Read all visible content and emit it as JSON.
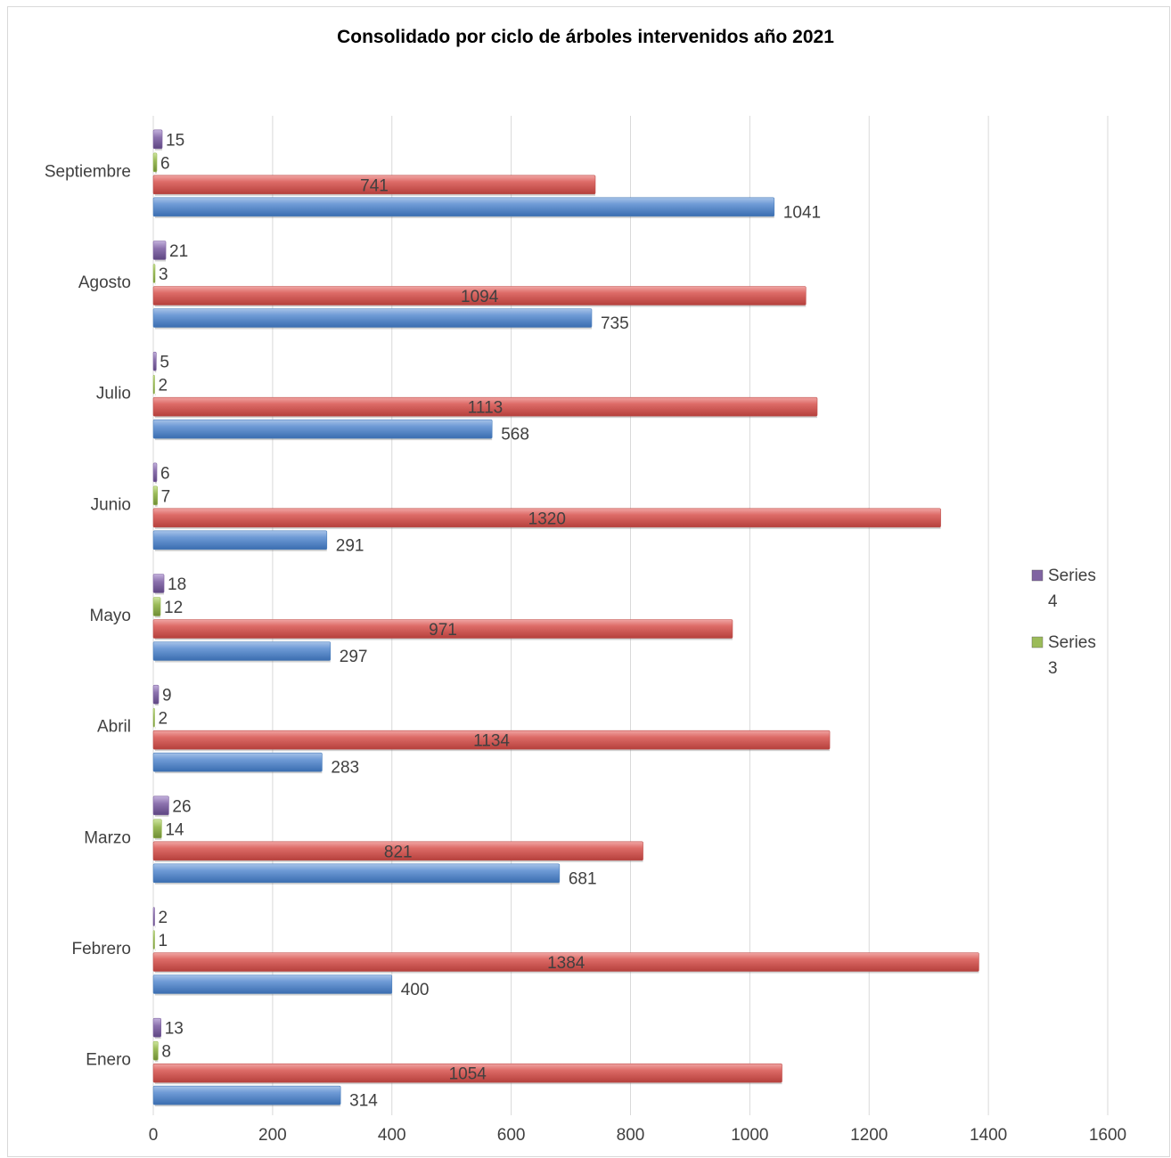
{
  "chart_data": {
    "type": "bar",
    "orientation": "horizontal",
    "title": "Consolidado por ciclo de árboles intervenidos año 2021",
    "xlabel": "",
    "ylabel": "",
    "xlim": [
      0,
      1600
    ],
    "x_ticks": [
      "0",
      "200",
      "400",
      "600",
      "800",
      "1000",
      "1200",
      "1400",
      "1600"
    ],
    "grid": "vertical",
    "categories": [
      "Enero",
      "Febrero",
      "Marzo",
      "Abril",
      "Mayo",
      "Junio",
      "Julio",
      "Agosto",
      "Septiembre"
    ],
    "series": [
      {
        "key": "s1",
        "color": "#4f81bd",
        "values": [
          314,
          400,
          681,
          283,
          297,
          291,
          568,
          735,
          1041
        ]
      },
      {
        "key": "s2",
        "color": "#c0504d",
        "values": [
          1054,
          1384,
          821,
          1134,
          971,
          1320,
          1113,
          1094,
          741
        ]
      },
      {
        "key": "s3",
        "name": "Series 3",
        "color": "#9bbb59",
        "values": [
          8,
          1,
          14,
          2,
          12,
          7,
          2,
          3,
          6
        ]
      },
      {
        "key": "s4",
        "name": "Series 4",
        "color": "#8064a2",
        "values": [
          13,
          2,
          26,
          9,
          18,
          6,
          5,
          21,
          15
        ]
      }
    ],
    "legend": {
      "placement": "right",
      "entries": [
        {
          "line1": "Series",
          "line2": "4",
          "color": "#8064a2"
        },
        {
          "line1": "Series",
          "line2": "3",
          "color": "#9bbb59"
        }
      ]
    }
  }
}
